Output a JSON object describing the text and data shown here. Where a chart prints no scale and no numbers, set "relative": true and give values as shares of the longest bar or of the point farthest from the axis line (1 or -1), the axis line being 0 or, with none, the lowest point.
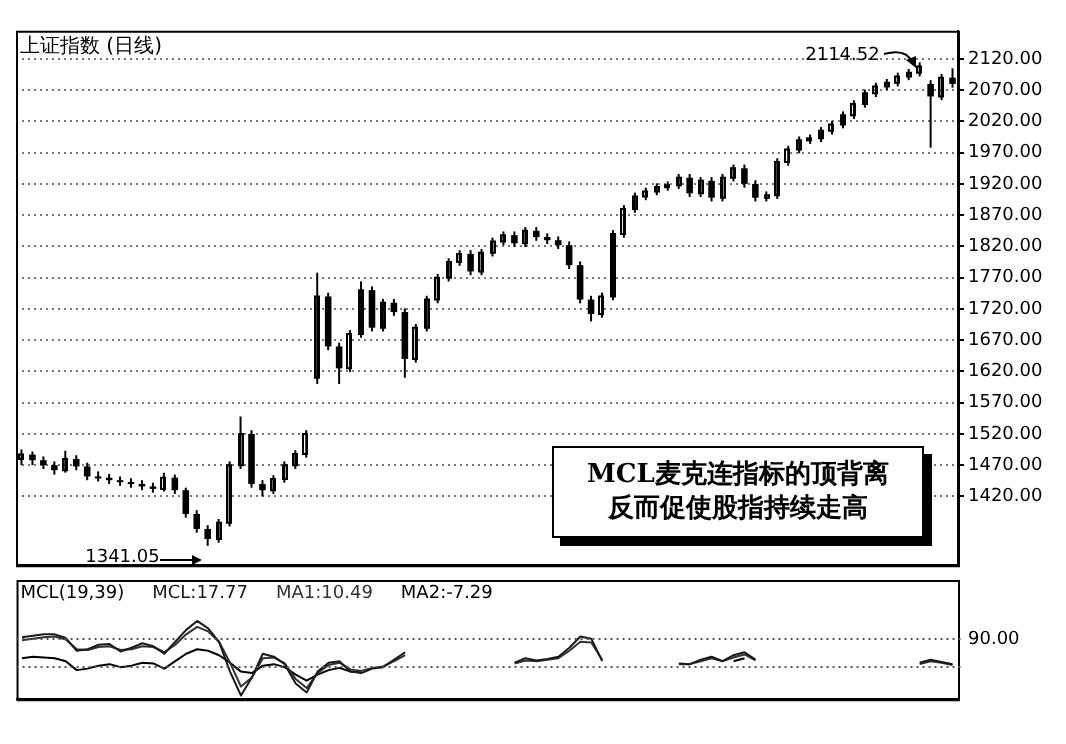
{
  "chart_data": [
    {
      "type": "candlestick",
      "title": "上证指数 (日线)",
      "color": "#000000",
      "categories": [
        null,
        null,
        null,
        null,
        null,
        null,
        null,
        null,
        null,
        null,
        null,
        null,
        null,
        null,
        null,
        null,
        null,
        null,
        null,
        null,
        null,
        null,
        null,
        null,
        null,
        null,
        null,
        null,
        null,
        null,
        null,
        null,
        null,
        null,
        null,
        null,
        null,
        null,
        null,
        null,
        null,
        null,
        null,
        null,
        null,
        null,
        null,
        null,
        null,
        null,
        null,
        null,
        null,
        null,
        null,
        null,
        null,
        null,
        null,
        null,
        null,
        null,
        null,
        null,
        null,
        null,
        null,
        null,
        null,
        null,
        null,
        null,
        null,
        null,
        null,
        null,
        null,
        null,
        null,
        null,
        null,
        null,
        null,
        null,
        null,
        null
      ],
      "ohlc": [
        [
          1480,
          1495,
          1470,
          1487
        ],
        [
          1487,
          1492,
          1470,
          1478
        ],
        [
          1478,
          1484,
          1464,
          1470
        ],
        [
          1470,
          1476,
          1455,
          1462
        ],
        [
          1462,
          1493,
          1458,
          1480
        ],
        [
          1480,
          1486,
          1462,
          1468
        ],
        [
          1468,
          1474,
          1446,
          1452
        ],
        [
          1452,
          1460,
          1444,
          1450
        ],
        [
          1450,
          1456,
          1440,
          1446
        ],
        [
          1446,
          1452,
          1437,
          1443
        ],
        [
          1443,
          1449,
          1434,
          1440
        ],
        [
          1440,
          1446,
          1430,
          1436
        ],
        [
          1436,
          1442,
          1426,
          1432
        ],
        [
          1432,
          1458,
          1428,
          1450
        ],
        [
          1450,
          1455,
          1424,
          1430
        ],
        [
          1430,
          1434,
          1386,
          1392
        ],
        [
          1392,
          1398,
          1362,
          1368
        ],
        [
          1368,
          1374,
          1341.05,
          1352
        ],
        [
          1352,
          1384,
          1346,
          1378
        ],
        [
          1378,
          1476,
          1372,
          1470
        ],
        [
          1470,
          1548,
          1464,
          1520
        ],
        [
          1520,
          1526,
          1434,
          1440
        ],
        [
          1440,
          1446,
          1420,
          1430
        ],
        [
          1430,
          1454,
          1424,
          1448
        ],
        [
          1448,
          1476,
          1442,
          1470
        ],
        [
          1470,
          1494,
          1464,
          1488
        ],
        [
          1488,
          1526,
          1482,
          1520
        ],
        [
          1610,
          1778,
          1600,
          1740
        ],
        [
          1740,
          1746,
          1654,
          1660
        ],
        [
          1660,
          1666,
          1600,
          1625
        ],
        [
          1625,
          1686,
          1619,
          1680
        ],
        [
          1680,
          1764,
          1674,
          1750
        ],
        [
          1750,
          1756,
          1684,
          1690
        ],
        [
          1690,
          1736,
          1684,
          1730
        ],
        [
          1730,
          1736,
          1709,
          1715
        ],
        [
          1715,
          1721,
          1610,
          1640
        ],
        [
          1640,
          1696,
          1634,
          1690
        ],
        [
          1690,
          1741,
          1684,
          1735
        ],
        [
          1735,
          1776,
          1729,
          1770
        ],
        [
          1770,
          1801,
          1764,
          1795
        ],
        [
          1795,
          1814,
          1789,
          1808
        ],
        [
          1808,
          1814,
          1774,
          1780
        ],
        [
          1780,
          1816,
          1774,
          1810
        ],
        [
          1810,
          1834,
          1804,
          1828
        ],
        [
          1828,
          1844,
          1822,
          1838
        ],
        [
          1838,
          1844,
          1819,
          1825
        ],
        [
          1825,
          1851,
          1819,
          1845
        ],
        [
          1845,
          1851,
          1829,
          1835
        ],
        [
          1835,
          1841,
          1824,
          1830
        ],
        [
          1830,
          1836,
          1816,
          1822
        ],
        [
          1822,
          1828,
          1784,
          1790
        ],
        [
          1790,
          1796,
          1729,
          1735
        ],
        [
          1735,
          1741,
          1700,
          1712
        ],
        [
          1712,
          1746,
          1706,
          1740
        ],
        [
          1740,
          1846,
          1734,
          1840
        ],
        [
          1840,
          1886,
          1834,
          1880
        ],
        [
          1880,
          1906,
          1874,
          1900
        ],
        [
          1900,
          1914,
          1894,
          1908
        ],
        [
          1908,
          1921,
          1902,
          1915
        ],
        [
          1915,
          1924,
          1909,
          1918
        ],
        [
          1918,
          1936,
          1912,
          1930
        ],
        [
          1930,
          1936,
          1899,
          1905
        ],
        [
          1905,
          1931,
          1899,
          1925
        ],
        [
          1925,
          1931,
          1892,
          1898
        ],
        [
          1898,
          1936,
          1892,
          1930
        ],
        [
          1930,
          1951,
          1924,
          1945
        ],
        [
          1945,
          1951,
          1914,
          1920
        ],
        [
          1920,
          1926,
          1892,
          1898
        ],
        [
          1898,
          1908,
          1892,
          1902
        ],
        [
          1902,
          1961,
          1896,
          1955
        ],
        [
          1955,
          1981,
          1949,
          1975
        ],
        [
          1975,
          1996,
          1969,
          1990
        ],
        [
          1990,
          1999,
          1984,
          1993
        ],
        [
          1993,
          2011,
          1987,
          2005
        ],
        [
          2005,
          2021,
          1999,
          2015
        ],
        [
          2015,
          2036,
          2009,
          2030
        ],
        [
          2030,
          2054,
          2024,
          2048
        ],
        [
          2048,
          2071,
          2042,
          2065
        ],
        [
          2065,
          2082,
          2059,
          2076
        ],
        [
          2076,
          2088,
          2070,
          2082
        ],
        [
          2082,
          2098,
          2076,
          2092
        ],
        [
          2092,
          2104,
          2086,
          2098
        ],
        [
          2098,
          2114.52,
          2092,
          2108
        ],
        [
          2080,
          2086,
          1978,
          2060
        ],
        [
          2060,
          2096,
          2054,
          2090
        ],
        [
          2090,
          2105,
          2074,
          2080
        ]
      ],
      "ylim": [
        1310,
        2165
      ],
      "yticks": [
        {
          "value": 1420,
          "label": "1420.00"
        },
        {
          "value": 1470,
          "label": "1470.00"
        },
        {
          "value": 1520,
          "label": "1520.00"
        },
        {
          "value": 1570,
          "label": "1570.00"
        },
        {
          "value": 1620,
          "label": "1620.00"
        },
        {
          "value": 1670,
          "label": "1670.00"
        },
        {
          "value": 1720,
          "label": "1720.00"
        },
        {
          "value": 1770,
          "label": "1770.00"
        },
        {
          "value": 1820,
          "label": "1820.00"
        },
        {
          "value": 1870,
          "label": "1870.00"
        },
        {
          "value": 1920,
          "label": "1920.00"
        },
        {
          "value": 1970,
          "label": "1970.00"
        },
        {
          "value": 2020,
          "label": "2020.00"
        },
        {
          "value": 2070,
          "label": "2070.00"
        },
        {
          "value": 2120,
          "label": "2120.00"
        }
      ],
      "grid": "y",
      "tick_labels": "y",
      "annotations": [
        "1341.05",
        "2114.52",
        "MCL麦克连指标的顶背离反而促使股指持续走高"
      ]
    },
    {
      "type": "line",
      "title": "MCL(19,39)",
      "relative": true,
      "categories": [
        null,
        null,
        null,
        null,
        null,
        null,
        null,
        null,
        null,
        null,
        null,
        null,
        null,
        null,
        null,
        null,
        null,
        null,
        null,
        null,
        null,
        null,
        null,
        null,
        null,
        null,
        null,
        null,
        null,
        null,
        null,
        null,
        null,
        null,
        null,
        null,
        null,
        null,
        null,
        null,
        null,
        null,
        null,
        null,
        null,
        null,
        null,
        null,
        null,
        null,
        null,
        null,
        null,
        null,
        null,
        null,
        null,
        null,
        null,
        null,
        null,
        null,
        null,
        null,
        null,
        null,
        null,
        null,
        null,
        null,
        null,
        null,
        null,
        null,
        null,
        null,
        null,
        null,
        null,
        null,
        null,
        null,
        null,
        null,
        null,
        null
      ],
      "series": [
        {
          "name": "MCL:17.77",
          "color": "#1a1a1a",
          "values": [
            0.78,
            0.8,
            0.82,
            0.82,
            0.77,
            0.6,
            0.62,
            0.68,
            0.69,
            0.59,
            0.64,
            0.7,
            0.66,
            0.56,
            0.72,
            0.88,
            1,
            0.9,
            0.72,
            0.32,
            0,
            0.24,
            0.56,
            0.52,
            0.42,
            0.16,
            0.04,
            0.32,
            0.44,
            0.46,
            0.32,
            0.3,
            0.36,
            0.38,
            0.48,
            0.58,
            null,
            null,
            null,
            null,
            null,
            null,
            null,
            null,
            null,
            0.44,
            0.5,
            0.47,
            0.49,
            0.52,
            0.64,
            0.79,
            0.76,
            0.46,
            null,
            null,
            null,
            null,
            null,
            null,
            0.43,
            0.42,
            0.48,
            0.52,
            0.46,
            0.54,
            0.58,
            0.48,
            null,
            null,
            null,
            null,
            null,
            null,
            null,
            null,
            null,
            null,
            null,
            null,
            null,
            null,
            0.44,
            0.48,
            0.45,
            0.42
          ]
        },
        {
          "name": "MA1:10.49",
          "color": "#333333",
          "values": [
            0.74,
            0.76,
            0.78,
            0.79,
            0.75,
            0.62,
            0.61,
            0.65,
            0.66,
            0.61,
            0.62,
            0.66,
            0.65,
            0.58,
            0.68,
            0.82,
            0.92,
            0.86,
            0.72,
            0.44,
            0.12,
            0.24,
            0.5,
            0.51,
            0.43,
            0.22,
            0.1,
            0.3,
            0.41,
            0.44,
            0.35,
            0.33,
            0.37,
            0.39,
            0.46,
            0.54,
            null,
            null,
            null,
            null,
            null,
            null,
            null,
            null,
            null,
            0.43,
            0.47,
            0.46,
            0.48,
            0.5,
            0.6,
            0.72,
            0.71,
            0.48,
            null,
            null,
            null,
            null,
            null,
            null,
            0.42,
            0.42,
            0.46,
            0.5,
            0.46,
            0.51,
            0.55,
            0.47,
            null,
            null,
            null,
            null,
            null,
            null,
            null,
            null,
            null,
            null,
            null,
            null,
            null,
            null,
            0.42,
            0.46,
            0.44,
            0.41
          ]
        },
        {
          "name": "MA2:-7.29",
          "color": "#000000",
          "values": [
            0.5,
            0.52,
            0.51,
            0.5,
            0.46,
            0.34,
            0.36,
            0.4,
            0.42,
            0.38,
            0.4,
            0.44,
            0.43,
            0.36,
            0.46,
            0.56,
            0.62,
            0.6,
            0.54,
            0.44,
            0.32,
            0.3,
            0.4,
            0.42,
            0.38,
            0.28,
            0.2,
            0.28,
            0.34,
            0.37,
            0.32,
            0.31,
            null,
            null,
            null,
            null,
            null,
            null,
            null,
            null,
            null,
            null,
            null,
            null,
            null,
            null,
            null,
            null,
            null,
            null,
            null,
            null,
            null,
            null,
            null,
            null,
            null,
            null,
            null,
            null,
            null,
            null,
            null,
            null,
            null,
            0.46,
            0.5,
            null,
            null,
            null,
            null,
            null,
            null,
            null,
            null,
            null,
            null,
            null,
            null,
            null,
            null,
            null,
            null,
            null,
            null,
            null
          ]
        }
      ],
      "annotations": [
        "90.00"
      ],
      "ref_lines": [
        {
          "axis": "y",
          "value": 0.76,
          "line_style": "dotted"
        },
        {
          "axis": "y",
          "value": 0.4,
          "line_style": "dotted"
        }
      ]
    }
  ]
}
